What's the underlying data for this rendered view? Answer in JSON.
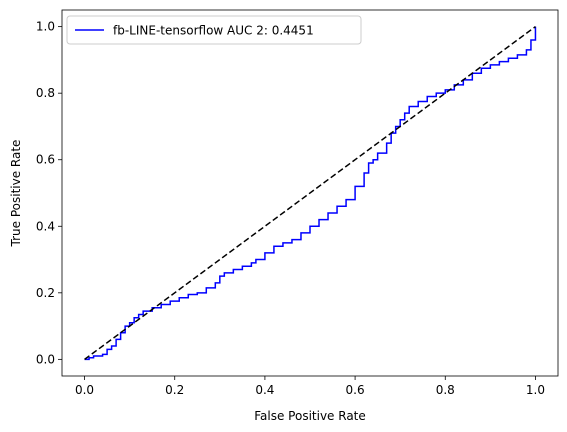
{
  "chart_data": {
    "type": "line",
    "xlabel": "False Positive Rate",
    "ylabel": "True Positive Rate",
    "xlim": [
      -0.05,
      1.05
    ],
    "ylim": [
      -0.05,
      1.05
    ],
    "xticks": [
      "0.0",
      "0.2",
      "0.4",
      "0.6",
      "0.8",
      "1.0"
    ],
    "yticks": [
      "0.0",
      "0.2",
      "0.4",
      "0.6",
      "0.8",
      "1.0"
    ],
    "grid": false,
    "legend": {
      "position": "top-left"
    },
    "series": [
      {
        "name": "fb-LINE-tensorflow AUC 2: 0.4451",
        "color": "#0000ff",
        "style": "step",
        "x": [
          0.0,
          0.01,
          0.02,
          0.04,
          0.05,
          0.06,
          0.07,
          0.08,
          0.09,
          0.1,
          0.11,
          0.12,
          0.13,
          0.15,
          0.17,
          0.19,
          0.21,
          0.23,
          0.25,
          0.27,
          0.29,
          0.3,
          0.31,
          0.33,
          0.35,
          0.37,
          0.38,
          0.4,
          0.42,
          0.44,
          0.46,
          0.48,
          0.5,
          0.52,
          0.54,
          0.56,
          0.58,
          0.6,
          0.62,
          0.63,
          0.64,
          0.65,
          0.67,
          0.68,
          0.69,
          0.7,
          0.71,
          0.72,
          0.74,
          0.76,
          0.78,
          0.8,
          0.82,
          0.84,
          0.86,
          0.88,
          0.9,
          0.92,
          0.94,
          0.96,
          0.98,
          0.99,
          1.0
        ],
        "y": [
          0.0,
          0.005,
          0.01,
          0.015,
          0.03,
          0.04,
          0.06,
          0.08,
          0.1,
          0.11,
          0.125,
          0.135,
          0.145,
          0.155,
          0.165,
          0.175,
          0.185,
          0.195,
          0.2,
          0.215,
          0.23,
          0.25,
          0.26,
          0.27,
          0.28,
          0.29,
          0.3,
          0.32,
          0.34,
          0.35,
          0.36,
          0.38,
          0.4,
          0.42,
          0.44,
          0.46,
          0.48,
          0.52,
          0.56,
          0.59,
          0.6,
          0.62,
          0.65,
          0.68,
          0.7,
          0.72,
          0.74,
          0.76,
          0.775,
          0.79,
          0.8,
          0.81,
          0.825,
          0.84,
          0.86,
          0.875,
          0.885,
          0.895,
          0.905,
          0.915,
          0.93,
          0.96,
          1.0
        ]
      },
      {
        "name": "",
        "color": "#000000",
        "style": "dashed",
        "x": [
          0,
          1
        ],
        "y": [
          0,
          1
        ]
      }
    ]
  }
}
